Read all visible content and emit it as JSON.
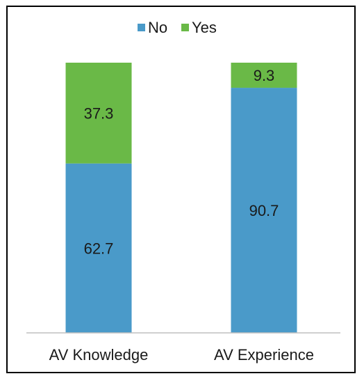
{
  "chart_data": {
    "type": "bar",
    "stacked": true,
    "categories": [
      "AV Knowledge",
      "AV Experience"
    ],
    "series": [
      {
        "name": "No",
        "values": [
          62.7,
          90.7
        ],
        "color": "#4a9ac9"
      },
      {
        "name": "Yes",
        "values": [
          37.3,
          9.3
        ],
        "color": "#6ab947"
      }
    ],
    "ylim": [
      0,
      100
    ],
    "grid": false,
    "legend": "top-center",
    "axis_color": "#bfbfbf"
  }
}
